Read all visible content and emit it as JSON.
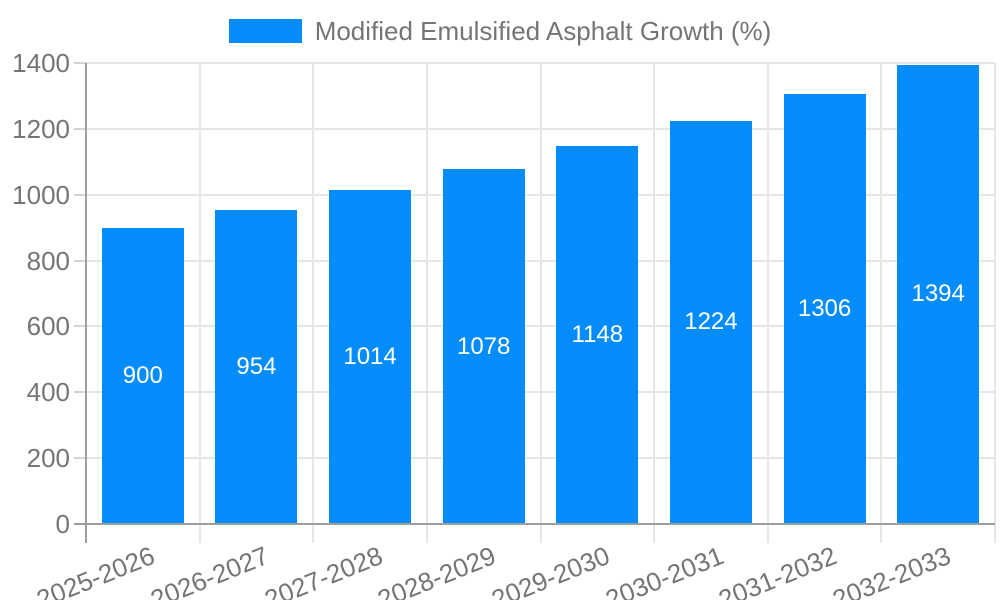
{
  "chart_data": {
    "type": "bar",
    "title": "",
    "legend": {
      "label": "Modified Emulsified Asphalt Growth (%)",
      "position": "top"
    },
    "categories": [
      "2025-2026",
      "2026-2027",
      "2027-2028",
      "2028-2029",
      "2029-2030",
      "2030-2031",
      "2031-2032",
      "2032-2033"
    ],
    "series": [
      {
        "name": "Modified Emulsified Asphalt Growth (%)",
        "values": [
          900,
          954,
          1014,
          1078,
          1148,
          1224,
          1306,
          1394
        ]
      }
    ],
    "value_labels": [
      "900",
      "954",
      "1014",
      "1078",
      "1148",
      "1224",
      "1306",
      "1394"
    ],
    "xlabel": "",
    "ylabel": "",
    "ylim": [
      0,
      1400
    ],
    "ytick_step": 200,
    "ytick_labels": [
      "0",
      "200",
      "400",
      "600",
      "800",
      "1000",
      "1200",
      "1400"
    ],
    "grid": true,
    "x_label_rotation_deg": -22,
    "colors": {
      "bar": "#048DFA",
      "value_label": "#FFFFFF",
      "axis": "#9E9E9E",
      "grid": "#E6E6E6",
      "tick": "#D4D4D4",
      "text": "#757575",
      "background": "#FFFFFF"
    }
  }
}
